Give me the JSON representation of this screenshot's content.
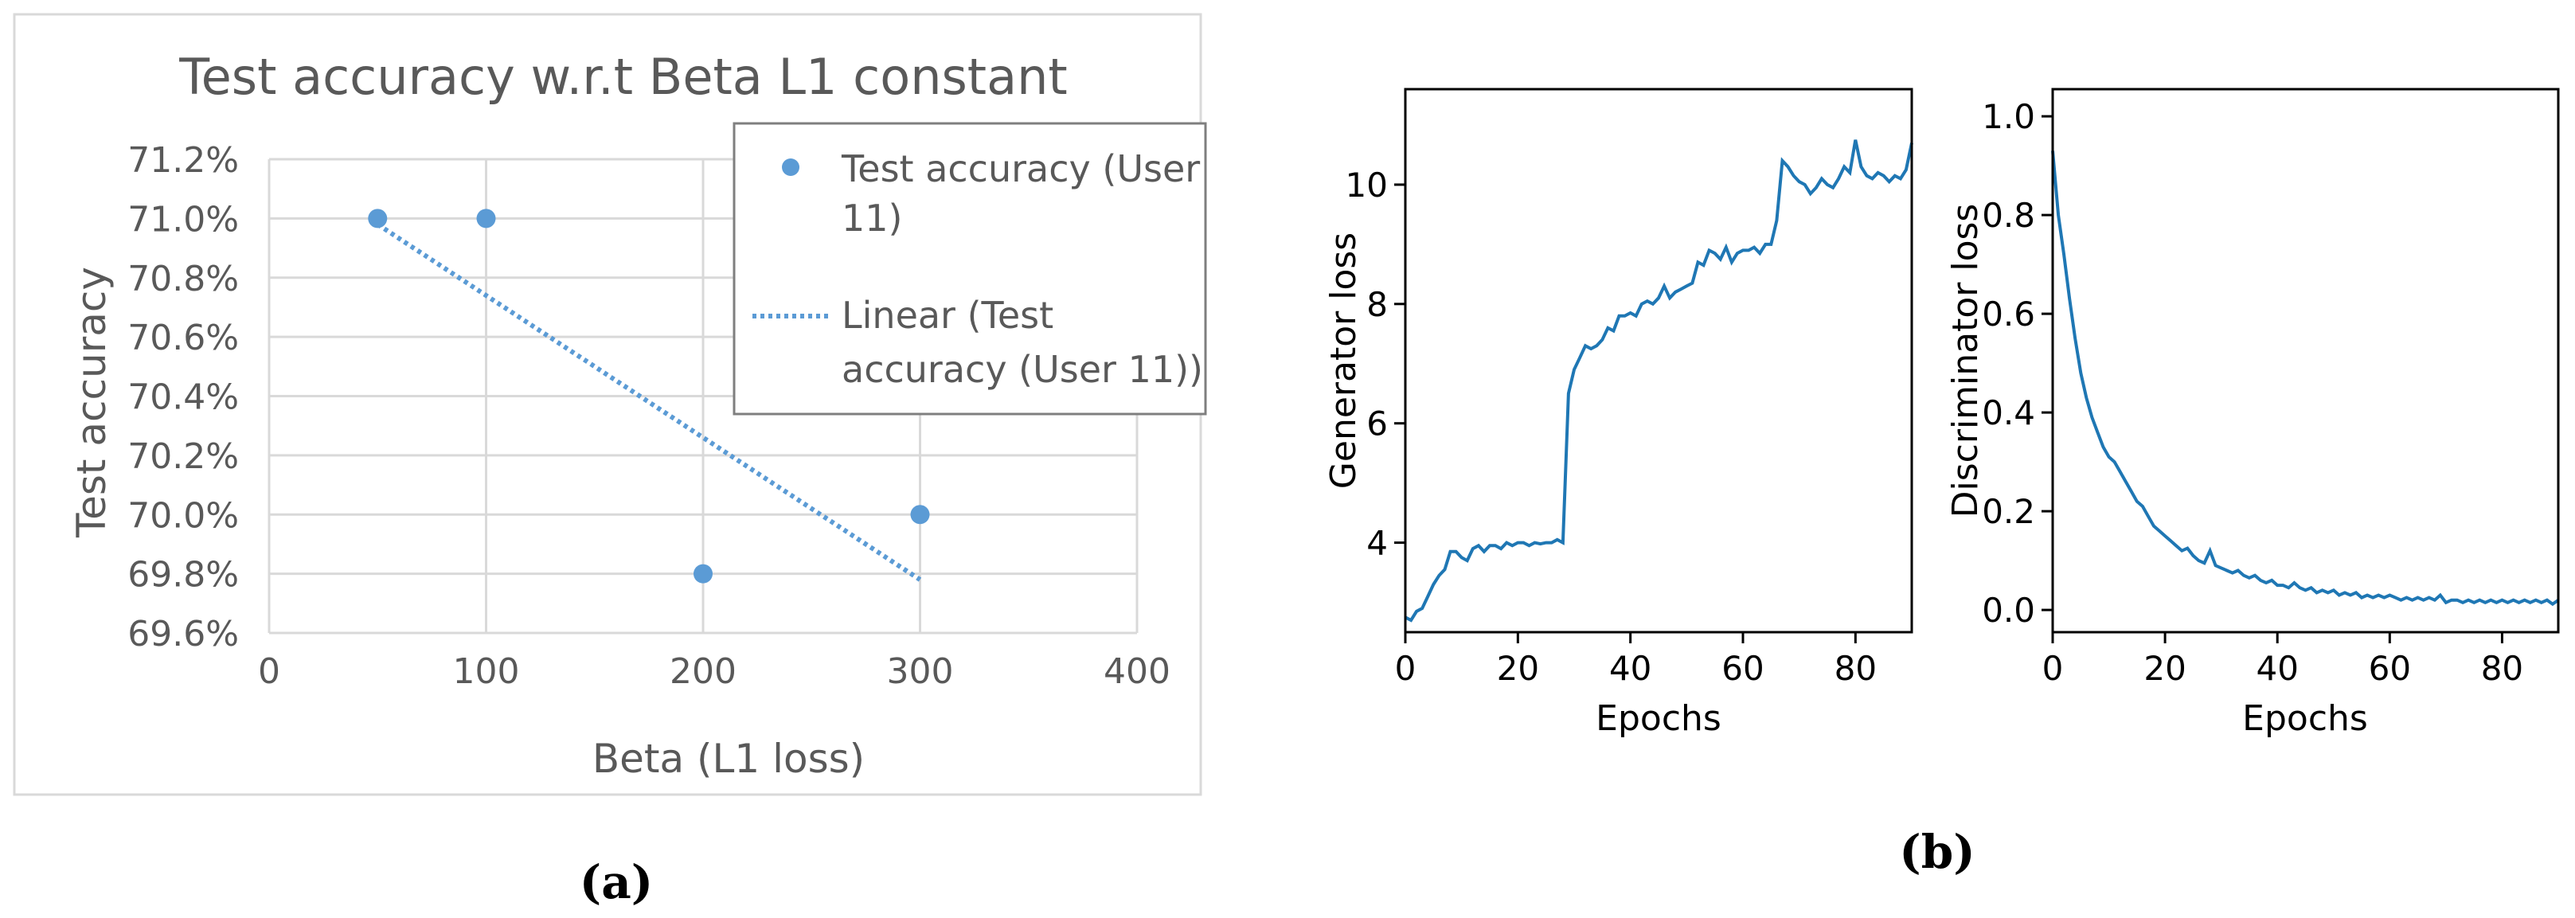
{
  "chart_data": [
    {
      "type": "scatter",
      "title": "Test accuracy w.r.t Beta L1 constant",
      "xlabel": "Beta (L1 loss)",
      "ylabel": "Test accuracy",
      "xlim": [
        0,
        400
      ],
      "ylim": [
        69.6,
        71.2
      ],
      "x_ticks": [
        "0",
        "100",
        "200",
        "300",
        "400"
      ],
      "y_ticks": [
        "69.6%",
        "69.8%",
        "70.0%",
        "70.2%",
        "70.4%",
        "70.6%",
        "70.8%",
        "71.0%",
        "71.2%"
      ],
      "grid": true,
      "legend_position": "top-right",
      "series": [
        {
          "name": "Test accuracy (User 11)",
          "x": [
            50,
            100,
            200,
            300
          ],
          "y": [
            71.0,
            71.0,
            69.8,
            70.0
          ],
          "color": "#5B9BD5"
        }
      ],
      "trendline": {
        "name": "Linear (Test accuracy (User 11))",
        "kind": "linear",
        "x": [
          50,
          300
        ],
        "y": [
          70.98,
          69.78
        ],
        "color": "#5B9BD5"
      },
      "caption": "(a)"
    },
    {
      "type": "line",
      "xlabel": "Epochs",
      "ylabel": "Generator loss",
      "xlim": [
        0,
        90
      ],
      "ylim": [
        2.5,
        11.6
      ],
      "x_ticks": [
        "0",
        "20",
        "40",
        "60",
        "80"
      ],
      "y_ticks": [
        "4",
        "6",
        "8",
        "10"
      ],
      "grid": false,
      "series": [
        {
          "color": "#1f77b4",
          "x": [
            0,
            1,
            2,
            3,
            4,
            5,
            6,
            7,
            8,
            9,
            10,
            11,
            12,
            13,
            14,
            15,
            16,
            17,
            18,
            19,
            20,
            21,
            22,
            23,
            24,
            25,
            26,
            27,
            28,
            29,
            30,
            31,
            32,
            33,
            34,
            35,
            36,
            37,
            38,
            39,
            40,
            41,
            42,
            43,
            44,
            45,
            46,
            47,
            48,
            49,
            50,
            51,
            52,
            53,
            54,
            55,
            56,
            57,
            58,
            59,
            60,
            61,
            62,
            63,
            64,
            65,
            66,
            67,
            68,
            69,
            70,
            71,
            72,
            73,
            74,
            75,
            76,
            77,
            78,
            79,
            80,
            81,
            82,
            83,
            84,
            85,
            86,
            87,
            88,
            89,
            90
          ],
          "y": [
            2.75,
            2.7,
            2.85,
            2.9,
            3.1,
            3.3,
            3.45,
            3.55,
            3.85,
            3.85,
            3.75,
            3.7,
            3.9,
            3.95,
            3.85,
            3.95,
            3.95,
            3.9,
            4.0,
            3.95,
            4.0,
            4.0,
            3.95,
            4.0,
            3.98,
            4.0,
            4.0,
            4.05,
            4.0,
            6.5,
            6.9,
            7.1,
            7.3,
            7.25,
            7.3,
            7.4,
            7.6,
            7.55,
            7.8,
            7.8,
            7.85,
            7.8,
            8.0,
            8.05,
            8.0,
            8.1,
            8.3,
            8.1,
            8.2,
            8.25,
            8.3,
            8.35,
            8.7,
            8.65,
            8.9,
            8.85,
            8.75,
            8.95,
            8.7,
            8.85,
            8.9,
            8.9,
            8.95,
            8.85,
            9.0,
            9.0,
            9.4,
            10.4,
            10.3,
            10.15,
            10.05,
            10.0,
            9.85,
            9.95,
            10.1,
            10.0,
            9.95,
            10.1,
            10.3,
            10.2,
            10.75,
            10.3,
            10.15,
            10.1,
            10.2,
            10.15,
            10.05,
            10.15,
            10.1,
            10.25,
            10.7
          ]
        }
      ],
      "caption": "(b)"
    },
    {
      "type": "line",
      "xlabel": "Epochs",
      "ylabel": "Discriminator loss",
      "xlim": [
        0,
        90
      ],
      "ylim": [
        -0.045,
        1.055
      ],
      "x_ticks": [
        "0",
        "20",
        "40",
        "60",
        "80"
      ],
      "y_ticks": [
        "0.0",
        "0.2",
        "0.4",
        "0.6",
        "0.8",
        "1.0"
      ],
      "grid": false,
      "series": [
        {
          "color": "#1f77b4",
          "x": [
            0,
            1,
            2,
            3,
            4,
            5,
            6,
            7,
            8,
            9,
            10,
            11,
            12,
            13,
            14,
            15,
            16,
            17,
            18,
            19,
            20,
            21,
            22,
            23,
            24,
            25,
            26,
            27,
            28,
            29,
            30,
            31,
            32,
            33,
            34,
            35,
            36,
            37,
            38,
            39,
            40,
            41,
            42,
            43,
            44,
            45,
            46,
            47,
            48,
            49,
            50,
            51,
            52,
            53,
            54,
            55,
            56,
            57,
            58,
            59,
            60,
            61,
            62,
            63,
            64,
            65,
            66,
            67,
            68,
            69,
            70,
            71,
            72,
            73,
            74,
            75,
            76,
            77,
            78,
            79,
            80,
            81,
            82,
            83,
            84,
            85,
            86,
            87,
            88,
            89,
            90
          ],
          "y": [
            0.93,
            0.8,
            0.72,
            0.63,
            0.55,
            0.48,
            0.43,
            0.39,
            0.36,
            0.33,
            0.31,
            0.3,
            0.28,
            0.26,
            0.24,
            0.22,
            0.21,
            0.19,
            0.17,
            0.16,
            0.15,
            0.14,
            0.13,
            0.12,
            0.125,
            0.11,
            0.1,
            0.095,
            0.12,
            0.09,
            0.085,
            0.08,
            0.075,
            0.08,
            0.07,
            0.065,
            0.07,
            0.06,
            0.055,
            0.06,
            0.05,
            0.05,
            0.045,
            0.055,
            0.045,
            0.04,
            0.045,
            0.035,
            0.04,
            0.035,
            0.04,
            0.03,
            0.035,
            0.03,
            0.035,
            0.025,
            0.03,
            0.025,
            0.03,
            0.025,
            0.03,
            0.025,
            0.02,
            0.025,
            0.02,
            0.025,
            0.02,
            0.025,
            0.02,
            0.03,
            0.015,
            0.02,
            0.02,
            0.015,
            0.02,
            0.015,
            0.02,
            0.015,
            0.02,
            0.015,
            0.02,
            0.015,
            0.02,
            0.015,
            0.02,
            0.015,
            0.02,
            0.015,
            0.02,
            0.012,
            0.02
          ]
        }
      ]
    }
  ]
}
